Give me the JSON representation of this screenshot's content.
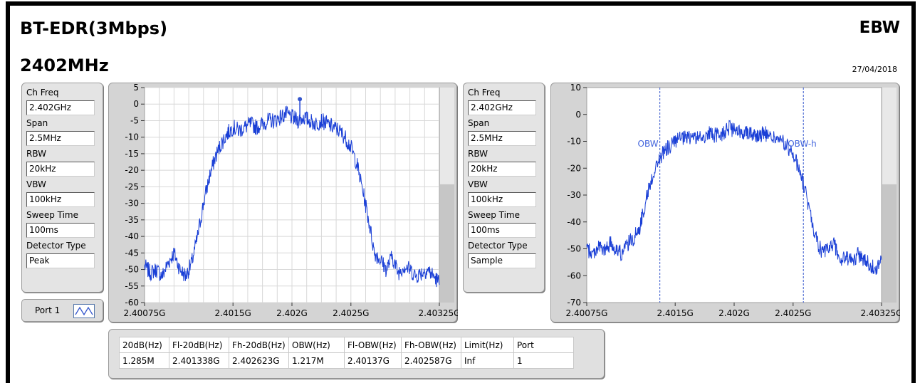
{
  "header": {
    "title": "BT-EDR(3Mbps)",
    "frequency": "2402MHz",
    "mode": "EBW",
    "date": "27/04/2018"
  },
  "left_params": [
    {
      "label": "Ch Freq",
      "value": "2.402GHz"
    },
    {
      "label": "Span",
      "value": "2.5MHz"
    },
    {
      "label": "RBW",
      "value": "20kHz"
    },
    {
      "label": "VBW",
      "value": "100kHz"
    },
    {
      "label": "Sweep Time",
      "value": "100ms"
    },
    {
      "label": "Detector Type",
      "value": "Peak"
    }
  ],
  "right_params": [
    {
      "label": "Ch Freq",
      "value": "2.402GHz"
    },
    {
      "label": "Span",
      "value": "2.5MHz"
    },
    {
      "label": "RBW",
      "value": "20kHz"
    },
    {
      "label": "VBW",
      "value": "100kHz"
    },
    {
      "label": "Sweep Time",
      "value": "100ms"
    },
    {
      "label": "Detector Type",
      "value": "Sample"
    }
  ],
  "port_button": {
    "label": "Port 1"
  },
  "results_table": {
    "headers": [
      "20dB(Hz)",
      "Fl-20dB(Hz)",
      "Fh-20dB(Hz)",
      "OBW(Hz)",
      "Fl-OBW(Hz)",
      "Fh-OBW(Hz)",
      "Limit(Hz)",
      "Port"
    ],
    "row": [
      "1.285M",
      "2.401338G",
      "2.402623G",
      "1.217M",
      "2.40137G",
      "2.402587G",
      "Inf",
      "1"
    ]
  },
  "colors": {
    "trace": "#1a3fd6",
    "marker": "#3355cc",
    "grid": "#d8d8d8"
  },
  "chart_data": [
    {
      "type": "line",
      "x_ticks": [
        "2.40075G",
        "2.4015G",
        "2.402G",
        "2.4025G",
        "2.40325G"
      ],
      "x_tick_values": [
        2.40075,
        2.4015,
        2.402,
        2.4025,
        2.40325
      ],
      "xlim": [
        2.40075,
        2.40325
      ],
      "ylim": [
        -60,
        5
      ],
      "y_ticks": [
        5,
        0,
        -5,
        -10,
        -15,
        -20,
        -25,
        -30,
        -35,
        -40,
        -45,
        -50,
        -55,
        -60
      ],
      "grid": true,
      "series": [
        {
          "x": [
            2.40075,
            2.4008,
            2.40085,
            2.4009,
            2.40095,
            2.401,
            2.40105,
            2.4011,
            2.40115,
            2.4012,
            2.40125,
            2.4013,
            2.40135,
            2.4014,
            2.40145,
            2.4015,
            2.40155,
            2.4016,
            2.40165,
            2.4017,
            2.40175,
            2.4018,
            2.40185,
            2.4019,
            2.40195,
            2.402,
            2.40205,
            2.4021,
            2.40215,
            2.4022,
            2.40225,
            2.4023,
            2.40235,
            2.4024,
            2.40245,
            2.4025,
            2.40255,
            2.4026,
            2.40265,
            2.4027,
            2.40275,
            2.4028,
            2.40285,
            2.4029,
            2.40295,
            2.403,
            2.40305,
            2.4031,
            2.40315,
            2.4032,
            2.40325
          ],
          "y": [
            -49,
            -51,
            -50,
            -52,
            -48,
            -45,
            -50,
            -52,
            -48,
            -40,
            -30,
            -22,
            -16,
            -12,
            -9,
            -7,
            -8,
            -7,
            -6,
            -7,
            -6,
            -5,
            -5,
            -4,
            -3,
            -4,
            -5,
            -4,
            -5,
            -6,
            -5,
            -6,
            -7,
            -8,
            -10,
            -13,
            -18,
            -26,
            -35,
            -45,
            -47,
            -50,
            -46,
            -51,
            -49,
            -50,
            -52,
            -51,
            -50,
            -52,
            -54
          ]
        }
      ],
      "marker": {
        "x": 2.402067,
        "y": 1.5
      }
    },
    {
      "type": "line",
      "x_ticks": [
        "2.40075G",
        "2.4015G",
        "2.402G",
        "2.4025G",
        "2.40325G"
      ],
      "x_tick_values": [
        2.40075,
        2.4015,
        2.402,
        2.4025,
        2.40325
      ],
      "xlim": [
        2.40075,
        2.40325
      ],
      "ylim": [
        -70,
        10
      ],
      "y_ticks": [
        10,
        0,
        -10,
        -20,
        -30,
        -40,
        -50,
        -60,
        -70
      ],
      "grid": false,
      "cursors": [
        {
          "label": "OBW",
          "x": 2.40137
        },
        {
          "label": "OBW-h",
          "x": 2.402587
        }
      ],
      "series": [
        {
          "x": [
            2.40075,
            2.4008,
            2.40085,
            2.4009,
            2.40095,
            2.401,
            2.40105,
            2.4011,
            2.40115,
            2.4012,
            2.40125,
            2.4013,
            2.40135,
            2.4014,
            2.40145,
            2.4015,
            2.40155,
            2.4016,
            2.40165,
            2.4017,
            2.40175,
            2.4018,
            2.40185,
            2.4019,
            2.40195,
            2.402,
            2.40205,
            2.4021,
            2.40215,
            2.4022,
            2.40225,
            2.4023,
            2.40235,
            2.4024,
            2.40245,
            2.4025,
            2.40255,
            2.4026,
            2.40265,
            2.4027,
            2.40275,
            2.4028,
            2.40285,
            2.4029,
            2.40295,
            2.403,
            2.40305,
            2.4031,
            2.40315,
            2.4032,
            2.40325
          ],
          "y": [
            -50,
            -52,
            -49,
            -51,
            -48,
            -50,
            -52,
            -48,
            -46,
            -42,
            -32,
            -24,
            -18,
            -14,
            -12,
            -10,
            -9,
            -9,
            -8,
            -9,
            -8,
            -7,
            -8,
            -7,
            -5,
            -6,
            -7,
            -6,
            -7,
            -8,
            -7,
            -8,
            -9,
            -10,
            -12,
            -15,
            -20,
            -28,
            -38,
            -47,
            -52,
            -50,
            -48,
            -55,
            -53,
            -55,
            -52,
            -54,
            -56,
            -57,
            -55
          ]
        }
      ]
    }
  ]
}
